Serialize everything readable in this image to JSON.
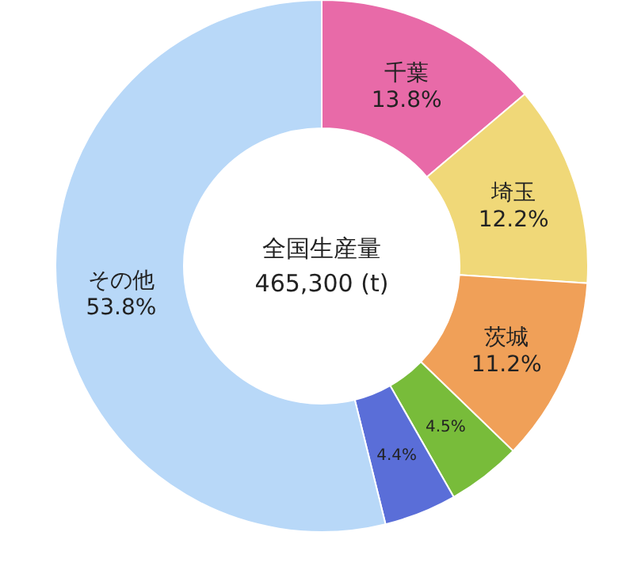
{
  "chart_data": {
    "type": "donut",
    "title": "全国生産量",
    "subtitle": "465,300 (t)",
    "categories": [
      "千葉",
      "埼玉",
      "茨城",
      null,
      null,
      "その他"
    ],
    "values": [
      13.8,
      12.2,
      11.2,
      4.5,
      4.4,
      53.8
    ],
    "colors": [
      "#e86aa8",
      "#f0d878",
      "#f0a058",
      "#78bc3a",
      "#5a6ed8",
      "#b8d8f8"
    ],
    "value_labels": [
      "13.8%",
      "12.2%",
      "11.2%",
      "4.5%",
      "4.4%",
      "53.8%"
    ]
  }
}
